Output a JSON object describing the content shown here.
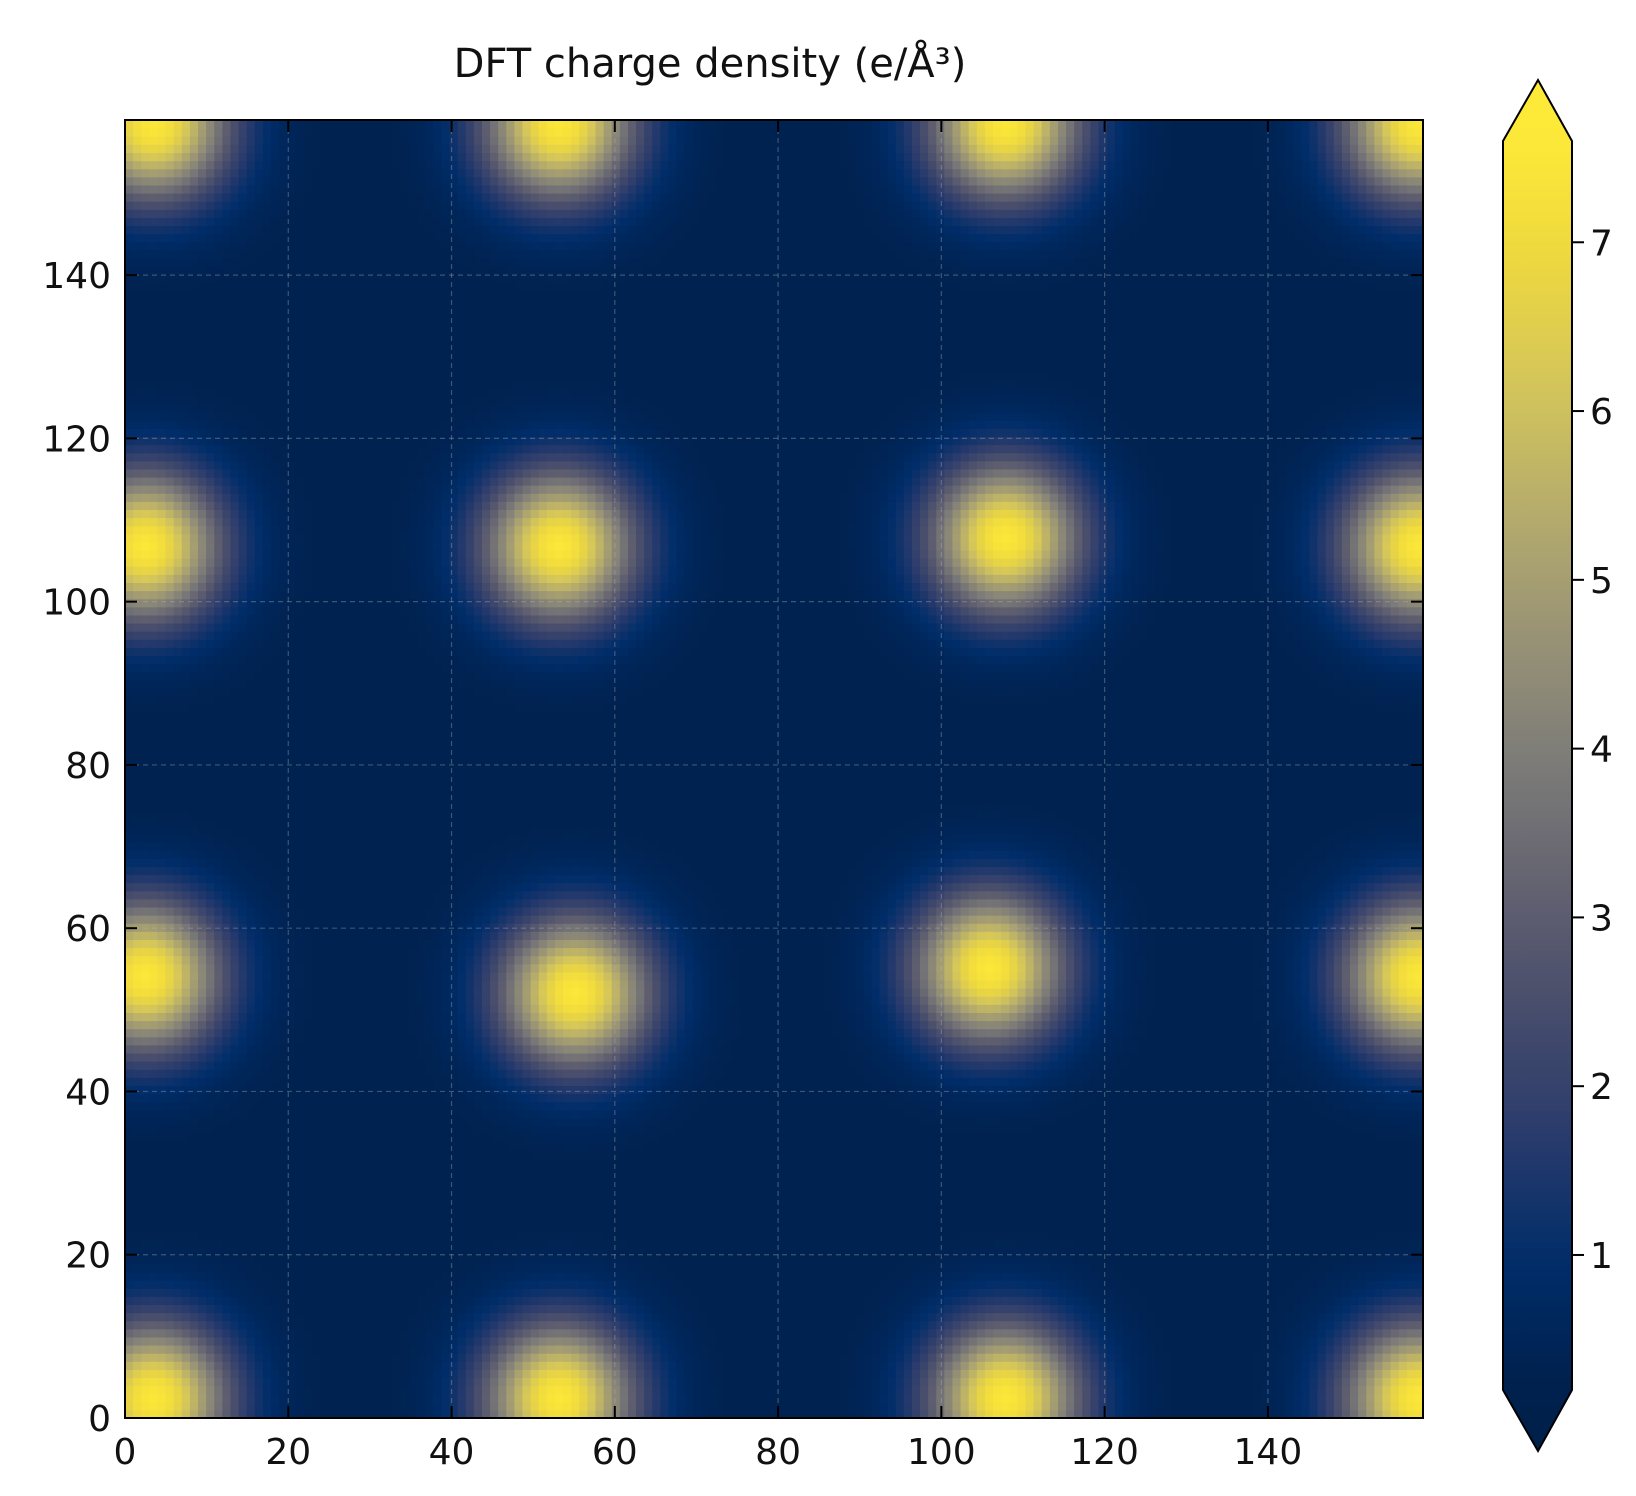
{
  "chart_data": {
    "type": "heatmap",
    "title": "DFT charge density (e/Å³)",
    "xlabel": "",
    "ylabel": "",
    "xlim": [
      0,
      159
    ],
    "ylim": [
      0,
      159
    ],
    "x_ticks": [
      0,
      20,
      40,
      60,
      80,
      100,
      120,
      140
    ],
    "y_ticks": [
      0,
      20,
      40,
      60,
      80,
      100,
      120,
      140
    ],
    "x_tick_labels": [
      "0",
      "20",
      "40",
      "60",
      "80",
      "100",
      "120",
      "140"
    ],
    "y_tick_labels": [
      "0",
      "20",
      "40",
      "60",
      "80",
      "100",
      "120",
      "140"
    ],
    "grid": true,
    "colormap": "cividis",
    "colorbar": {
      "range": [
        0.2,
        7.6
      ],
      "ticks": [
        1,
        2,
        3,
        4,
        5,
        6,
        7
      ],
      "tick_labels": [
        "1",
        "2",
        "3",
        "4",
        "5",
        "6",
        "7"
      ],
      "extend": "both",
      "placement": "right"
    },
    "background_value": 0.3,
    "peak_width": 6.5,
    "peaks": [
      {
        "x": 3,
        "y": 2,
        "value": 7.5
      },
      {
        "x": 53,
        "y": 2,
        "value": 7.5
      },
      {
        "x": 108,
        "y": 2,
        "value": 7.5
      },
      {
        "x": 159,
        "y": 2,
        "value": 7.5
      },
      {
        "x": 2,
        "y": 54,
        "value": 7.5
      },
      {
        "x": 55,
        "y": 52,
        "value": 7.5
      },
      {
        "x": 106,
        "y": 55,
        "value": 7.5
      },
      {
        "x": 159,
        "y": 54,
        "value": 7.5
      },
      {
        "x": 2,
        "y": 107,
        "value": 7.5
      },
      {
        "x": 53,
        "y": 107,
        "value": 7.5
      },
      {
        "x": 108,
        "y": 108,
        "value": 7.5
      },
      {
        "x": 159,
        "y": 107,
        "value": 7.5
      },
      {
        "x": 3,
        "y": 159,
        "value": 7.5
      },
      {
        "x": 53,
        "y": 159,
        "value": 7.5
      },
      {
        "x": 108,
        "y": 159,
        "value": 7.5
      },
      {
        "x": 159,
        "y": 159,
        "value": 7.5
      }
    ]
  }
}
